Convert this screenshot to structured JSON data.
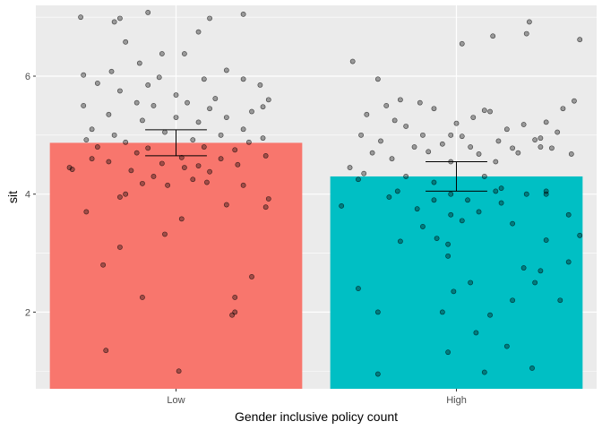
{
  "chart_data": {
    "type": "bar",
    "categories": [
      "Low",
      "High"
    ],
    "xlabel": "Gender inclusive policy count",
    "ylabel": "sit",
    "ylim": [
      0.7,
      7.2
    ],
    "yticks": [
      2,
      4,
      6
    ],
    "grid": true,
    "series": [
      {
        "values": [
          4.87,
          4.3
        ],
        "colors": [
          "#F8766D",
          "#00BFC4"
        ],
        "error_low": [
          4.65,
          4.05
        ],
        "error_high": [
          5.09,
          4.55
        ]
      }
    ],
    "points": {
      "Low": [
        {
          "x": -0.34,
          "y": 7.0
        },
        {
          "x": -0.2,
          "y": 6.98
        },
        {
          "x": -0.1,
          "y": 7.08
        },
        {
          "x": 0.12,
          "y": 6.98
        },
        {
          "x": 0.24,
          "y": 7.05
        },
        {
          "x": -0.22,
          "y": 6.92
        },
        {
          "x": 0.08,
          "y": 6.75
        },
        {
          "x": -0.18,
          "y": 6.58
        },
        {
          "x": -0.05,
          "y": 6.38
        },
        {
          "x": -0.13,
          "y": 6.22
        },
        {
          "x": 0.03,
          "y": 6.38
        },
        {
          "x": -0.23,
          "y": 6.08
        },
        {
          "x": -0.33,
          "y": 6.02
        },
        {
          "x": 0.18,
          "y": 6.1
        },
        {
          "x": -0.06,
          "y": 5.98
        },
        {
          "x": 0.1,
          "y": 5.95
        },
        {
          "x": 0.24,
          "y": 5.95
        },
        {
          "x": -0.28,
          "y": 5.88
        },
        {
          "x": -0.1,
          "y": 5.85
        },
        {
          "x": 0.3,
          "y": 5.85
        },
        {
          "x": -0.2,
          "y": 5.75
        },
        {
          "x": 0.0,
          "y": 5.68
        },
        {
          "x": 0.14,
          "y": 5.62
        },
        {
          "x": -0.14,
          "y": 5.55
        },
        {
          "x": 0.04,
          "y": 5.55
        },
        {
          "x": 0.33,
          "y": 5.6
        },
        {
          "x": -0.33,
          "y": 5.5
        },
        {
          "x": -0.08,
          "y": 5.5
        },
        {
          "x": 0.12,
          "y": 5.45
        },
        {
          "x": 0.31,
          "y": 5.48
        },
        {
          "x": -0.24,
          "y": 5.35
        },
        {
          "x": 0.0,
          "y": 5.3
        },
        {
          "x": 0.18,
          "y": 5.3
        },
        {
          "x": 0.27,
          "y": 5.4
        },
        {
          "x": -0.12,
          "y": 5.25
        },
        {
          "x": 0.08,
          "y": 5.22
        },
        {
          "x": -0.3,
          "y": 5.1
        },
        {
          "x": -0.04,
          "y": 5.05
        },
        {
          "x": 0.24,
          "y": 5.1
        },
        {
          "x": -0.22,
          "y": 5.0
        },
        {
          "x": 0.16,
          "y": 5.0
        },
        {
          "x": 0.31,
          "y": 4.95
        },
        {
          "x": -0.32,
          "y": 4.92
        },
        {
          "x": -0.18,
          "y": 4.88
        },
        {
          "x": 0.06,
          "y": 4.92
        },
        {
          "x": 0.26,
          "y": 4.88
        },
        {
          "x": -0.28,
          "y": 4.8
        },
        {
          "x": -0.1,
          "y": 4.78
        },
        {
          "x": 0.1,
          "y": 4.8
        },
        {
          "x": 0.21,
          "y": 4.75
        },
        {
          "x": 0.32,
          "y": 4.65
        },
        {
          "x": -0.3,
          "y": 4.6
        },
        {
          "x": -0.14,
          "y": 4.7
        },
        {
          "x": 0.02,
          "y": 4.62
        },
        {
          "x": 0.16,
          "y": 4.6
        },
        {
          "x": -0.24,
          "y": 4.55
        },
        {
          "x": -0.05,
          "y": 4.52
        },
        {
          "x": 0.08,
          "y": 4.48
        },
        {
          "x": 0.22,
          "y": 4.5
        },
        {
          "x": -0.38,
          "y": 4.45
        },
        {
          "x": -0.37,
          "y": 4.42
        },
        {
          "x": -0.16,
          "y": 4.4
        },
        {
          "x": 0.03,
          "y": 4.45
        },
        {
          "x": 0.12,
          "y": 4.38
        },
        {
          "x": -0.08,
          "y": 4.3
        },
        {
          "x": 0.06,
          "y": 4.25
        },
        {
          "x": -0.12,
          "y": 4.18
        },
        {
          "x": -0.03,
          "y": 4.15
        },
        {
          "x": 0.11,
          "y": 4.2
        },
        {
          "x": 0.24,
          "y": 4.15
        },
        {
          "x": -0.18,
          "y": 4.0
        },
        {
          "x": -0.2,
          "y": 3.95
        },
        {
          "x": 0.18,
          "y": 3.82
        },
        {
          "x": 0.33,
          "y": 3.92
        },
        {
          "x": -0.32,
          "y": 3.7
        },
        {
          "x": 0.32,
          "y": 3.78
        },
        {
          "x": 0.02,
          "y": 3.58
        },
        {
          "x": -0.04,
          "y": 3.32
        },
        {
          "x": -0.2,
          "y": 3.1
        },
        {
          "x": -0.26,
          "y": 2.8
        },
        {
          "x": 0.27,
          "y": 2.6
        },
        {
          "x": -0.12,
          "y": 2.25
        },
        {
          "x": 0.21,
          "y": 2.25
        },
        {
          "x": 0.21,
          "y": 2.0
        },
        {
          "x": 0.2,
          "y": 1.95
        },
        {
          "x": -0.25,
          "y": 1.35
        },
        {
          "x": 0.01,
          "y": 1.0
        }
      ],
      "High": [
        {
          "x": -0.37,
          "y": 6.25
        },
        {
          "x": 0.25,
          "y": 6.72
        },
        {
          "x": 0.13,
          "y": 6.68
        },
        {
          "x": 0.44,
          "y": 6.62
        },
        {
          "x": 0.02,
          "y": 6.55
        },
        {
          "x": 0.26,
          "y": 6.92
        },
        {
          "x": -0.28,
          "y": 5.95
        },
        {
          "x": 0.42,
          "y": 5.58
        },
        {
          "x": -0.2,
          "y": 5.6
        },
        {
          "x": -0.13,
          "y": 5.55
        },
        {
          "x": -0.25,
          "y": 5.5
        },
        {
          "x": -0.08,
          "y": 5.45
        },
        {
          "x": 0.1,
          "y": 5.42
        },
        {
          "x": 0.12,
          "y": 5.4
        },
        {
          "x": 0.38,
          "y": 5.45
        },
        {
          "x": -0.32,
          "y": 5.35
        },
        {
          "x": -0.22,
          "y": 5.25
        },
        {
          "x": 0.06,
          "y": 5.3
        },
        {
          "x": 0.32,
          "y": 5.22
        },
        {
          "x": -0.18,
          "y": 5.15
        },
        {
          "x": 0.0,
          "y": 5.2
        },
        {
          "x": 0.24,
          "y": 5.18
        },
        {
          "x": 0.18,
          "y": 5.1
        },
        {
          "x": 0.36,
          "y": 5.05
        },
        {
          "x": -0.34,
          "y": 5.0
        },
        {
          "x": -0.12,
          "y": 5.0
        },
        {
          "x": -0.02,
          "y": 5.0
        },
        {
          "x": 0.02,
          "y": 4.98
        },
        {
          "x": 0.3,
          "y": 4.95
        },
        {
          "x": -0.27,
          "y": 4.9
        },
        {
          "x": -0.05,
          "y": 4.85
        },
        {
          "x": 0.15,
          "y": 4.9
        },
        {
          "x": 0.28,
          "y": 4.92
        },
        {
          "x": -0.15,
          "y": 4.8
        },
        {
          "x": 0.05,
          "y": 4.8
        },
        {
          "x": 0.2,
          "y": 4.78
        },
        {
          "x": 0.3,
          "y": 4.8
        },
        {
          "x": 0.34,
          "y": 4.78
        },
        {
          "x": -0.3,
          "y": 4.7
        },
        {
          "x": -0.1,
          "y": 4.72
        },
        {
          "x": 0.08,
          "y": 4.68
        },
        {
          "x": 0.22,
          "y": 4.7
        },
        {
          "x": 0.41,
          "y": 4.68
        },
        {
          "x": -0.23,
          "y": 4.6
        },
        {
          "x": -0.02,
          "y": 4.55
        },
        {
          "x": 0.14,
          "y": 4.55
        },
        {
          "x": -0.38,
          "y": 4.45
        },
        {
          "x": -0.33,
          "y": 4.35
        },
        {
          "x": -0.18,
          "y": 4.3
        },
        {
          "x": 0.1,
          "y": 4.3
        },
        {
          "x": -0.35,
          "y": 4.25
        },
        {
          "x": -0.08,
          "y": 4.2
        },
        {
          "x": 0.16,
          "y": 4.1
        },
        {
          "x": 0.32,
          "y": 4.05
        },
        {
          "x": -0.21,
          "y": 4.05
        },
        {
          "x": -0.02,
          "y": 4.0
        },
        {
          "x": 0.14,
          "y": 4.05
        },
        {
          "x": 0.25,
          "y": 4.0
        },
        {
          "x": 0.32,
          "y": 4.0
        },
        {
          "x": -0.24,
          "y": 3.95
        },
        {
          "x": -0.08,
          "y": 3.9
        },
        {
          "x": 0.04,
          "y": 3.9
        },
        {
          "x": 0.16,
          "y": 3.85
        },
        {
          "x": -0.41,
          "y": 3.8
        },
        {
          "x": -0.14,
          "y": 3.75
        },
        {
          "x": -0.02,
          "y": 3.65
        },
        {
          "x": 0.08,
          "y": 3.7
        },
        {
          "x": 0.4,
          "y": 3.65
        },
        {
          "x": -0.12,
          "y": 3.45
        },
        {
          "x": 0.02,
          "y": 3.55
        },
        {
          "x": 0.2,
          "y": 3.5
        },
        {
          "x": 0.44,
          "y": 3.3
        },
        {
          "x": -0.2,
          "y": 3.2
        },
        {
          "x": -0.07,
          "y": 3.25
        },
        {
          "x": 0.32,
          "y": 3.22
        },
        {
          "x": -0.03,
          "y": 3.15
        },
        {
          "x": -0.03,
          "y": 2.95
        },
        {
          "x": 0.4,
          "y": 2.85
        },
        {
          "x": 0.24,
          "y": 2.75
        },
        {
          "x": 0.3,
          "y": 2.7
        },
        {
          "x": 0.28,
          "y": 2.5
        },
        {
          "x": 0.05,
          "y": 2.5
        },
        {
          "x": -0.35,
          "y": 2.4
        },
        {
          "x": -0.01,
          "y": 2.35
        },
        {
          "x": 0.37,
          "y": 2.2
        },
        {
          "x": 0.2,
          "y": 2.2
        },
        {
          "x": -0.28,
          "y": 2.0
        },
        {
          "x": -0.05,
          "y": 2.0
        },
        {
          "x": 0.12,
          "y": 1.95
        },
        {
          "x": 0.07,
          "y": 1.65
        },
        {
          "x": 0.18,
          "y": 1.42
        },
        {
          "x": -0.03,
          "y": 1.32
        },
        {
          "x": 0.27,
          "y": 1.05
        },
        {
          "x": 0.1,
          "y": 0.98
        },
        {
          "x": -0.28,
          "y": 0.95
        }
      ]
    }
  }
}
